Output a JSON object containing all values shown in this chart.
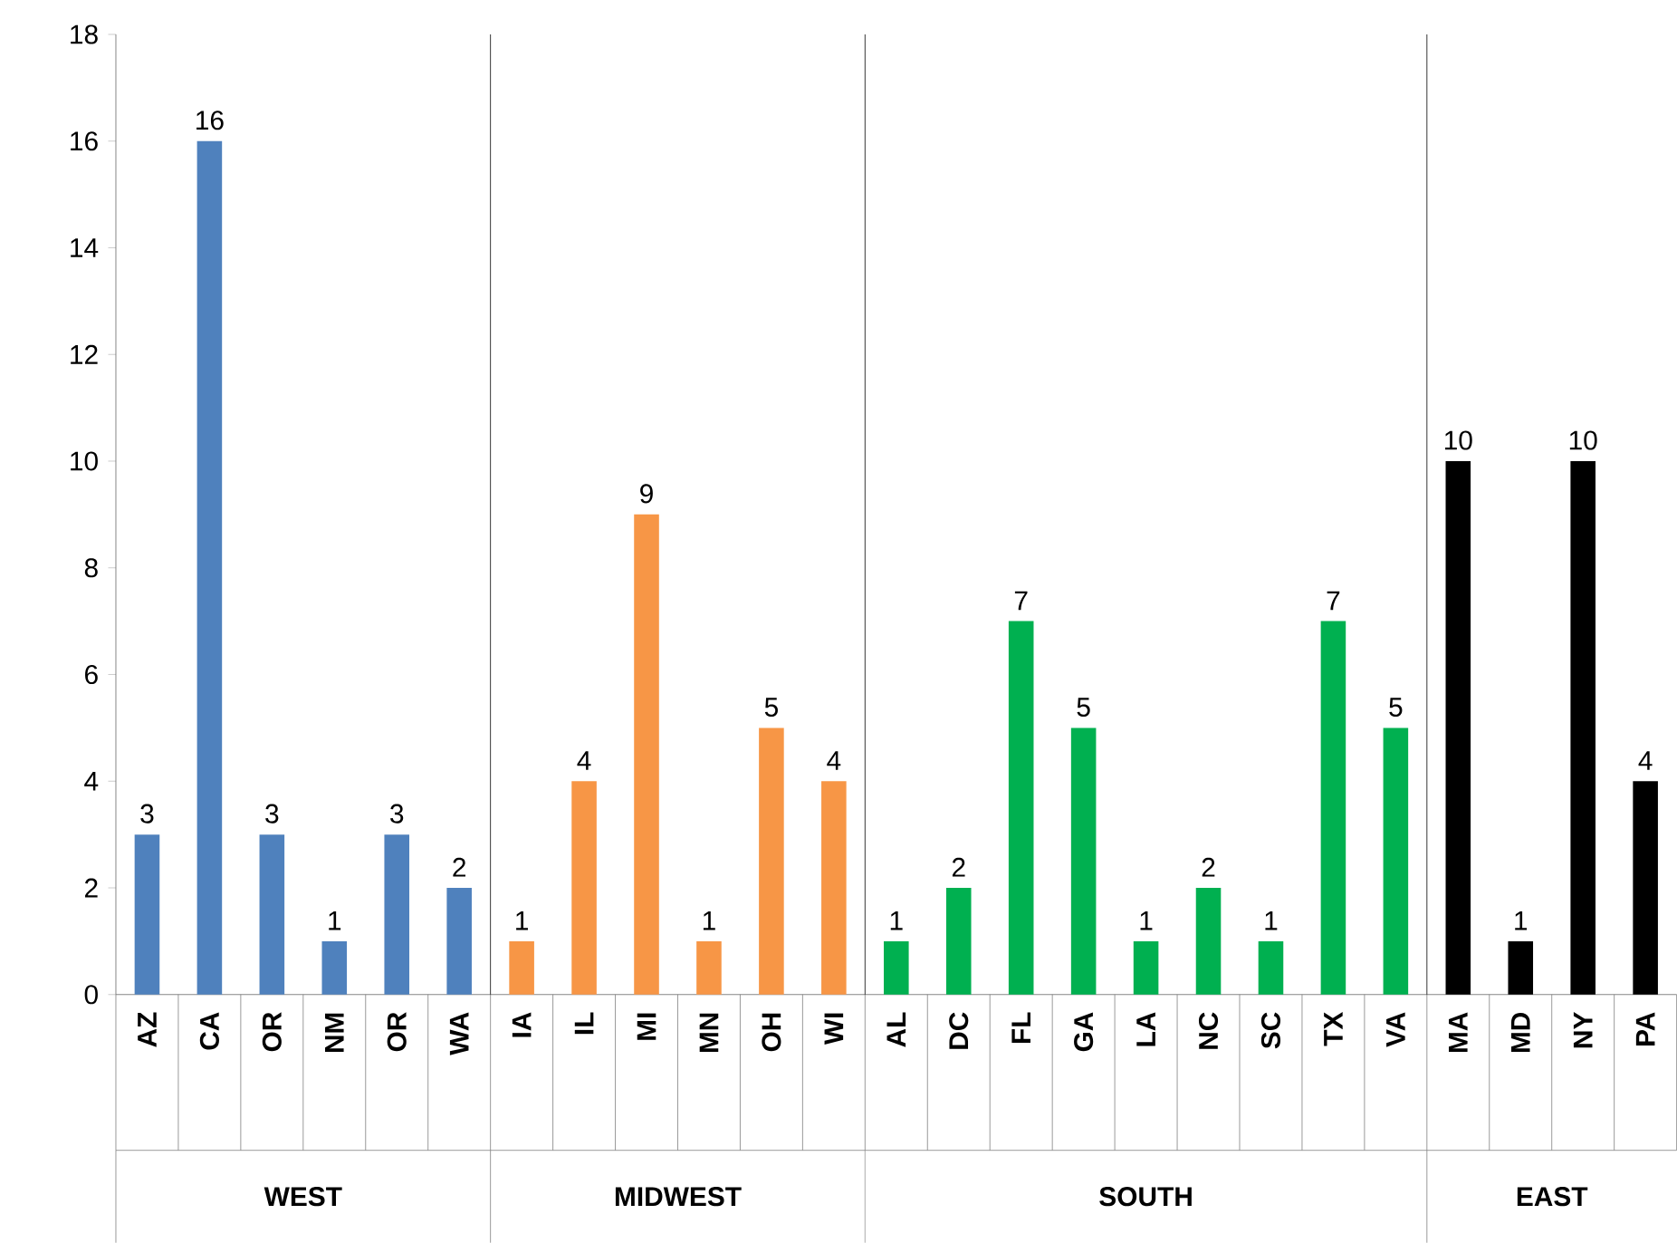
{
  "chart_data": {
    "type": "bar",
    "categories": [
      "AZ",
      "CA",
      "OR",
      "NM",
      "OR",
      "WA",
      "IA",
      "IL",
      "MI",
      "MN",
      "OH",
      "WI",
      "AL",
      "DC",
      "FL",
      "GA",
      "LA",
      "NC",
      "SC",
      "TX",
      "VA",
      "MA",
      "MD",
      "NY",
      "PA"
    ],
    "values": [
      3,
      16,
      3,
      1,
      3,
      2,
      1,
      4,
      9,
      1,
      5,
      4,
      1,
      2,
      7,
      5,
      1,
      2,
      1,
      7,
      5,
      10,
      1,
      10,
      4
    ],
    "colors": [
      "#4f81bd",
      "#4f81bd",
      "#4f81bd",
      "#4f81bd",
      "#4f81bd",
      "#4f81bd",
      "#f79646",
      "#f79646",
      "#f79646",
      "#f79646",
      "#f79646",
      "#f79646",
      "#00b050",
      "#00b050",
      "#00b050",
      "#00b050",
      "#00b050",
      "#00b050",
      "#00b050",
      "#00b050",
      "#00b050",
      "#000000",
      "#000000",
      "#000000",
      "#000000"
    ],
    "annotations": [
      "WEST",
      "MIDWEST",
      "SOUTH",
      "EAST"
    ],
    "ylim": [
      0,
      18
    ],
    "yticks": [
      0,
      2,
      4,
      6,
      8,
      10,
      12,
      14,
      16,
      18
    ],
    "data_labels": true
  }
}
